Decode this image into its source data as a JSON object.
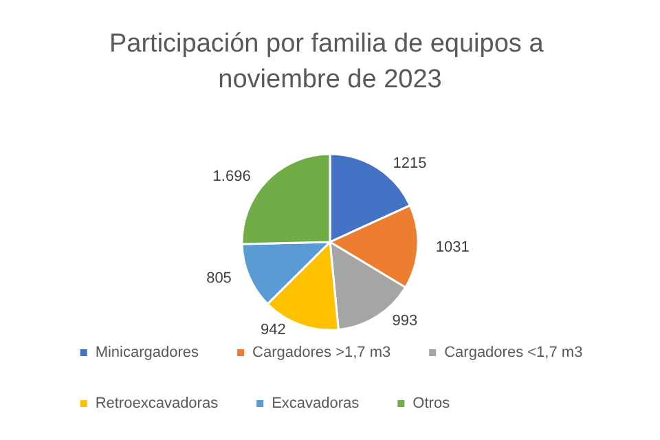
{
  "chart_data": {
    "type": "pie",
    "title": "Participación por familia de equipos a noviembre de 2023",
    "categories": [
      "Minicargadores",
      "Cargadores >1,7 m3",
      "Cargadores <1,7 m3",
      "Retroexcavadoras",
      "Excavadoras",
      "Otros"
    ],
    "values": [
      1215,
      1031,
      993,
      942,
      805,
      1696
    ],
    "value_labels": [
      "1215",
      "1031",
      "993",
      "942",
      "805",
      "1.696"
    ],
    "colors": [
      "#4472c4",
      "#ed7d31",
      "#a5a5a5",
      "#ffc000",
      "#5b9bd5",
      "#70ad47"
    ],
    "legend": "bottom"
  }
}
